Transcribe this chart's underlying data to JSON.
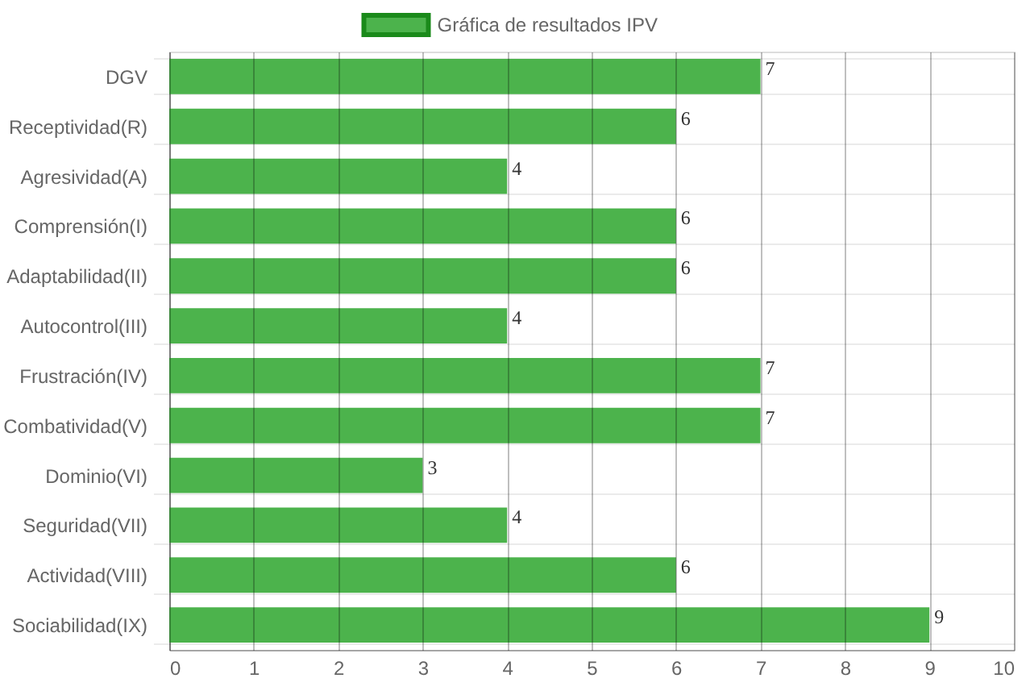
{
  "chart_data": {
    "type": "bar",
    "orientation": "horizontal",
    "categories": [
      "DGV",
      "Receptividad(R)",
      "Agresividad(A)",
      "Comprensión(I)",
      "Adaptabilidad(II)",
      "Autocontrol(III)",
      "Frustración(IV)",
      "Combatividad(V)",
      "Dominio(VI)",
      "Seguridad(VII)",
      "Actividad(VIII)",
      "Sociabilidad(IX)"
    ],
    "series": [
      {
        "name": "Gráfica de resultados IPV",
        "color": "#4cb34c",
        "values": [
          7,
          6,
          4,
          6,
          6,
          4,
          7,
          7,
          3,
          4,
          6,
          9
        ]
      }
    ],
    "xlim": [
      0,
      10
    ],
    "xticks": [
      0,
      1,
      2,
      3,
      4,
      5,
      6,
      7,
      8,
      9,
      10
    ],
    "grid": true,
    "legend": "top",
    "data_labels": true
  }
}
